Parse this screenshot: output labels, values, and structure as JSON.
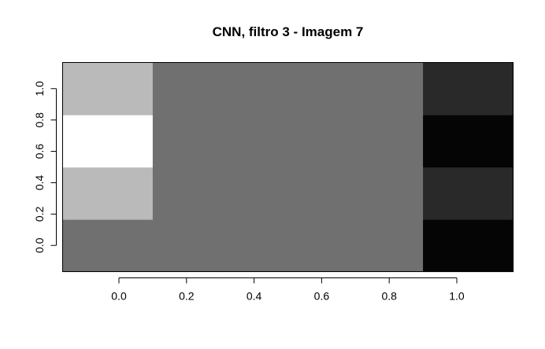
{
  "chart_data": {
    "type": "heatmap",
    "title": "CNN, filtro 3 - Imagem 7",
    "xlabel": "",
    "ylabel": "",
    "x_ticks": [
      "0.0",
      "0.2",
      "0.4",
      "0.6",
      "0.8",
      "1.0"
    ],
    "y_ticks": [
      "0.0",
      "0.2",
      "0.4",
      "0.6",
      "0.8",
      "1.0"
    ],
    "x_values": [
      0.0,
      0.2,
      0.4,
      0.6,
      0.8,
      1.0
    ],
    "y_values": [
      0.0,
      0.3333,
      0.6667,
      1.0
    ],
    "xlim": [
      -0.1667,
      1.1667
    ],
    "ylim": [
      -0.1667,
      1.1667
    ],
    "colormap": "grayscale",
    "grid": false,
    "legend": "none",
    "values_by_row": [
      {
        "y": 0.0,
        "intensity": [
          0.44,
          0.44,
          0.44,
          0.44,
          0.44,
          0.02
        ]
      },
      {
        "y": 0.3333,
        "intensity": [
          0.73,
          0.44,
          0.44,
          0.44,
          0.44,
          0.16
        ]
      },
      {
        "y": 0.6667,
        "intensity": [
          1.0,
          0.44,
          0.44,
          0.44,
          0.44,
          0.02
        ]
      },
      {
        "y": 1.0,
        "intensity": [
          0.73,
          0.44,
          0.44,
          0.44,
          0.44,
          0.16
        ]
      }
    ]
  }
}
